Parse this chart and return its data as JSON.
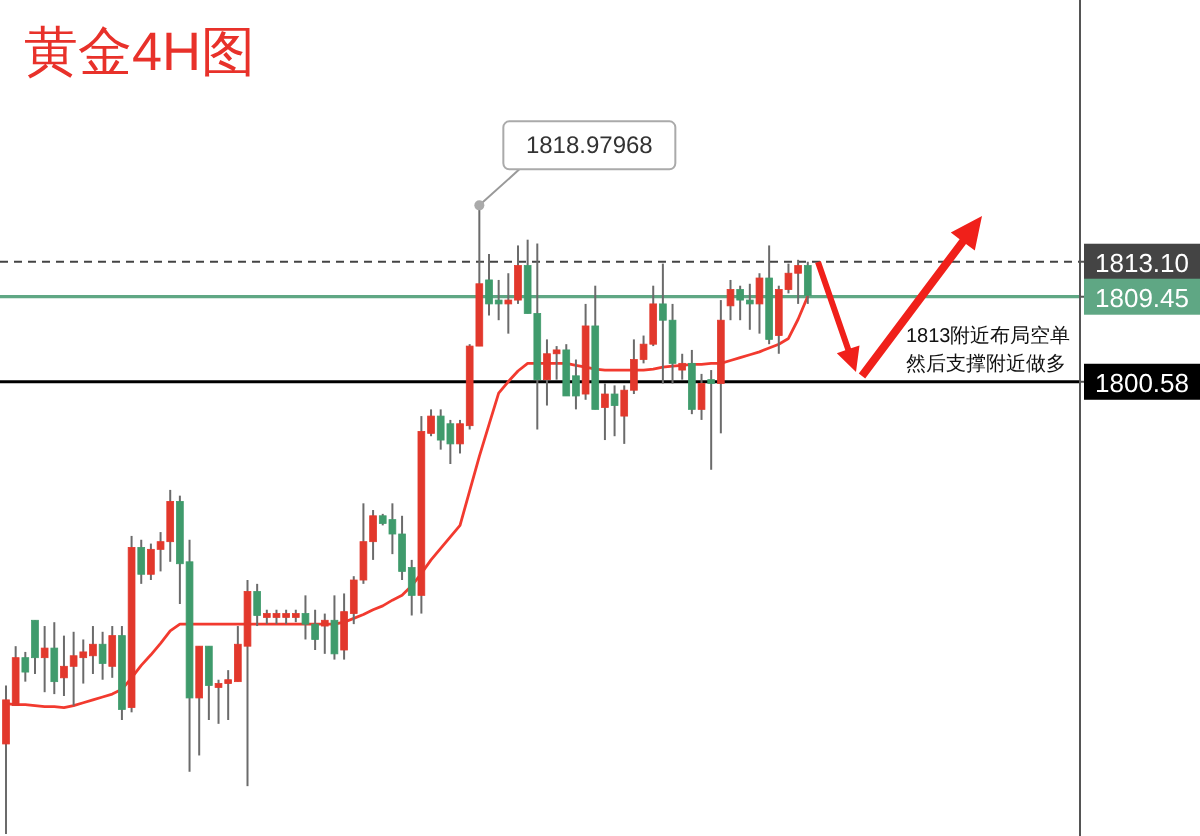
{
  "chart_data": {
    "type": "candlestick",
    "title": "黄金4H图",
    "categories": [
      null,
      null,
      null,
      null,
      null,
      null,
      null,
      null,
      null,
      null,
      null,
      null,
      null,
      null,
      null,
      null,
      null,
      null,
      null,
      null,
      null,
      null,
      null,
      null,
      null,
      null,
      null,
      null,
      null,
      null,
      null,
      null,
      null,
      null,
      null,
      null,
      null,
      null,
      null,
      null,
      null,
      null,
      null,
      null,
      null,
      null,
      null,
      null,
      null,
      null,
      null,
      null,
      null,
      null,
      null,
      null,
      null,
      null,
      null,
      null,
      null,
      null,
      null,
      null,
      null,
      null,
      null,
      null,
      null,
      null,
      null,
      null,
      null,
      null,
      null,
      null,
      null,
      null,
      null,
      null,
      null,
      null,
      null,
      null
    ],
    "ohlc": [
      [
        1762.8,
        1768.9,
        1753.4,
        1767.4
      ],
      [
        1766.8,
        1773.0,
        1766.8,
        1771.8
      ],
      [
        1771.8,
        1772.4,
        1769.3,
        1770.3
      ],
      [
        1775.7,
        1775.7,
        1770.1,
        1771.8
      ],
      [
        1771.8,
        1775.1,
        1768.2,
        1772.8
      ],
      [
        1772.8,
        1775.5,
        1768.0,
        1769.3
      ],
      [
        1769.7,
        1774.1,
        1767.8,
        1770.9
      ],
      [
        1770.9,
        1774.5,
        1766.8,
        1772.0
      ],
      [
        1771.8,
        1773.7,
        1769.1,
        1772.4
      ],
      [
        1772.0,
        1775.1,
        1770.1,
        1773.2
      ],
      [
        1773.2,
        1774.5,
        1769.5,
        1771.2
      ],
      [
        1770.9,
        1775.1,
        1769.7,
        1774.1
      ],
      [
        1774.1,
        1775.1,
        1765.3,
        1766.4
      ],
      [
        1766.6,
        1784.5,
        1766.1,
        1783.3
      ],
      [
        1783.3,
        1784.1,
        1779.5,
        1780.5
      ],
      [
        1780.5,
        1783.7,
        1779.9,
        1783.1
      ],
      [
        1783.1,
        1784.9,
        1780.8,
        1783.9
      ],
      [
        1783.9,
        1789.3,
        1781.8,
        1788.1
      ],
      [
        1788.1,
        1788.7,
        1777.4,
        1781.6
      ],
      [
        1781.8,
        1784.1,
        1759.9,
        1767.6
      ],
      [
        1767.6,
        1773.0,
        1761.6,
        1773.0
      ],
      [
        1773.0,
        1773.0,
        1765.3,
        1768.9
      ],
      [
        1768.7,
        1769.5,
        1764.9,
        1769.1
      ],
      [
        1769.1,
        1770.5,
        1765.3,
        1769.5
      ],
      [
        1769.3,
        1775.1,
        1769.3,
        1773.2
      ],
      [
        1773.0,
        1779.9,
        1758.4,
        1778.7
      ],
      [
        1778.7,
        1779.5,
        1775.1,
        1776.2
      ],
      [
        1776.0,
        1776.8,
        1775.3,
        1776.4
      ],
      [
        1776.0,
        1776.8,
        1775.3,
        1776.4
      ],
      [
        1776.0,
        1776.8,
        1775.3,
        1776.4
      ],
      [
        1776.0,
        1776.8,
        1775.5,
        1776.4
      ],
      [
        1776.4,
        1778.3,
        1773.7,
        1775.3
      ],
      [
        1775.3,
        1776.8,
        1772.6,
        1773.7
      ],
      [
        1775.1,
        1776.4,
        1772.2,
        1775.7
      ],
      [
        1775.7,
        1778.3,
        1771.6,
        1772.2
      ],
      [
        1772.6,
        1778.5,
        1771.6,
        1776.6
      ],
      [
        1776.4,
        1780.3,
        1775.3,
        1779.9
      ],
      [
        1779.9,
        1787.9,
        1779.5,
        1783.9
      ],
      [
        1783.9,
        1787.2,
        1782.0,
        1786.6
      ],
      [
        1786.6,
        1786.8,
        1785.6,
        1785.8
      ],
      [
        1786.2,
        1787.9,
        1782.6,
        1784.7
      ],
      [
        1784.7,
        1786.6,
        1779.9,
        1780.8
      ],
      [
        1781.2,
        1782.0,
        1776.2,
        1778.3
      ],
      [
        1778.3,
        1797.0,
        1776.4,
        1795.4
      ],
      [
        1795.2,
        1797.7,
        1794.9,
        1797.0
      ],
      [
        1797.0,
        1797.7,
        1793.5,
        1794.5
      ],
      [
        1796.2,
        1796.6,
        1792.0,
        1794.1
      ],
      [
        1794.1,
        1796.6,
        1793.1,
        1796.2
      ],
      [
        1796.0,
        1804.5,
        1795.6,
        1804.3
      ],
      [
        1804.3,
        1818.98,
        1804.3,
        1810.8
      ],
      [
        1811.2,
        1813.9,
        1807.5,
        1808.7
      ],
      [
        1809.1,
        1811.2,
        1807.0,
        1808.7
      ],
      [
        1808.7,
        1811.9,
        1805.6,
        1809.1
      ],
      [
        1809.1,
        1814.8,
        1808.7,
        1812.7
      ],
      [
        1812.7,
        1815.4,
        1807.7,
        1807.7
      ],
      [
        1807.7,
        1815.0,
        1795.6,
        1800.8
      ],
      [
        1800.8,
        1805.0,
        1798.1,
        1803.5
      ],
      [
        1803.5,
        1804.3,
        1800.8,
        1803.9
      ],
      [
        1803.9,
        1804.5,
        1799.1,
        1799.1
      ],
      [
        1801.2,
        1802.9,
        1797.7,
        1799.1
      ],
      [
        1799.3,
        1808.7,
        1798.7,
        1806.4
      ],
      [
        1806.4,
        1810.6,
        1797.7,
        1797.7
      ],
      [
        1797.9,
        1800.4,
        1794.5,
        1799.3
      ],
      [
        1799.3,
        1800.2,
        1794.9,
        1798.1
      ],
      [
        1797.0,
        1800.2,
        1794.1,
        1799.7
      ],
      [
        1799.7,
        1805.0,
        1799.3,
        1802.9
      ],
      [
        1802.9,
        1805.4,
        1802.5,
        1804.5
      ],
      [
        1804.5,
        1810.6,
        1804.3,
        1808.7
      ],
      [
        1808.7,
        1812.9,
        1800.4,
        1807.0
      ],
      [
        1807.0,
        1808.7,
        1800.4,
        1802.5
      ],
      [
        1801.8,
        1803.5,
        1800.8,
        1802.5
      ],
      [
        1802.5,
        1803.9,
        1797.2,
        1797.7
      ],
      [
        1797.7,
        1801.4,
        1796.6,
        1800.4
      ],
      [
        1800.8,
        1801.8,
        1791.4,
        1800.4
      ],
      [
        1800.4,
        1809.1,
        1795.2,
        1807.0
      ],
      [
        1808.5,
        1811.2,
        1807.0,
        1810.2
      ],
      [
        1810.2,
        1810.6,
        1807.0,
        1809.1
      ],
      [
        1809.1,
        1810.8,
        1806.0,
        1808.7
      ],
      [
        1808.7,
        1811.9,
        1805.6,
        1811.4
      ],
      [
        1811.4,
        1814.8,
        1804.5,
        1805.0
      ],
      [
        1805.4,
        1810.6,
        1803.5,
        1810.2
      ],
      [
        1810.2,
        1812.9,
        1809.8,
        1811.9
      ],
      [
        1811.9,
        1813.3,
        1808.7,
        1812.7
      ],
      [
        1812.7,
        1813.1,
        1808.7,
        1809.6
      ]
    ],
    "colors": [
      "#e2382c",
      "#e2382c",
      "#3f9b6c",
      "#3f9b6c",
      "#e2382c",
      "#3f9b6c",
      "#e2382c",
      "#e2382c",
      "#e2382c",
      "#e2382c",
      "#3f9b6c",
      "#e2382c",
      "#3f9b6c",
      "#e2382c",
      "#3f9b6c",
      "#e2382c",
      "#e2382c",
      "#e2382c",
      "#3f9b6c",
      "#3f9b6c",
      "#e2382c",
      "#3f9b6c",
      "#e2382c",
      "#e2382c",
      "#e2382c",
      "#e2382c",
      "#3f9b6c",
      "#e2382c",
      "#e2382c",
      "#e2382c",
      "#e2382c",
      "#3f9b6c",
      "#3f9b6c",
      "#e2382c",
      "#3f9b6c",
      "#e2382c",
      "#e2382c",
      "#e2382c",
      "#e2382c",
      "#3f9b6c",
      "#3f9b6c",
      "#3f9b6c",
      "#3f9b6c",
      "#e2382c",
      "#e2382c",
      "#3f9b6c",
      "#3f9b6c",
      "#e2382c",
      "#e2382c",
      "#e2382c",
      "#3f9b6c",
      "#3f9b6c",
      "#e2382c",
      "#e2382c",
      "#3f9b6c",
      "#3f9b6c",
      "#e2382c",
      "#e2382c",
      "#3f9b6c",
      "#3f9b6c",
      "#e2382c",
      "#3f9b6c",
      "#e2382c",
      "#3f9b6c",
      "#e2382c",
      "#e2382c",
      "#e2382c",
      "#e2382c",
      "#3f9b6c",
      "#3f9b6c",
      "#e2382c",
      "#3f9b6c",
      "#e2382c",
      "#3f9b6c",
      "#e2382c",
      "#e2382c",
      "#3f9b6c",
      "#3f9b6c",
      "#e2382c",
      "#3f9b6c",
      "#e2382c",
      "#e2382c",
      "#e2382c",
      "#3f9b6c"
    ],
    "series": [
      {
        "type": "line",
        "color": "#f23a2f",
        "values": [
          1767.0,
          1766.9,
          1766.9,
          1766.8,
          1766.7,
          1766.7,
          1766.6,
          1766.8,
          1767.1,
          1767.4,
          1767.7,
          1768.0,
          1768.5,
          1769.7,
          1771.0,
          1772.1,
          1773.3,
          1774.6,
          1775.3,
          1775.3,
          1775.3,
          1775.3,
          1775.3,
          1775.3,
          1775.3,
          1775.3,
          1775.3,
          1775.3,
          1775.3,
          1775.3,
          1775.3,
          1775.3,
          1775.3,
          1775.3,
          1775.3,
          1775.5,
          1775.9,
          1776.3,
          1776.8,
          1777.2,
          1777.8,
          1778.3,
          1779.3,
          1780.6,
          1782.0,
          1783.2,
          1784.4,
          1785.6,
          1789.2,
          1792.8,
          1796.1,
          1799.4,
          1800.6,
          1801.7,
          1802.5,
          1802.5,
          1802.5,
          1802.5,
          1802.5,
          1802.3,
          1802.1,
          1801.9,
          1801.8,
          1801.8,
          1801.8,
          1801.8,
          1801.8,
          1801.9,
          1802.1,
          1802.2,
          1802.3,
          1802.4,
          1802.4,
          1802.5,
          1802.5,
          1802.8,
          1803.1,
          1803.4,
          1803.7,
          1804.1,
          1804.5,
          1805.1,
          1807.1,
          1809.5
        ]
      }
    ],
    "ylim": [
      1753.2,
      1840.4
    ],
    "yticks": [
      {
        "value": 1813.1,
        "label": "1813.10"
      },
      {
        "value": 1809.45,
        "label": "1809.45"
      },
      {
        "value": 1800.58,
        "label": "1800.58"
      }
    ],
    "ref_lines": [
      {
        "axis": "y",
        "value": 1813.1,
        "color": "#444444",
        "line_style": "dashed"
      },
      {
        "axis": "y",
        "value": 1809.45,
        "color": "#5fa784",
        "line_style": "solid"
      },
      {
        "axis": "y",
        "value": 1800.58,
        "color": "#000000",
        "line_style": "solid"
      }
    ],
    "annotations": [
      "1818.97968",
      "1813附近布局空单",
      "然后支撑附近做多"
    ]
  }
}
